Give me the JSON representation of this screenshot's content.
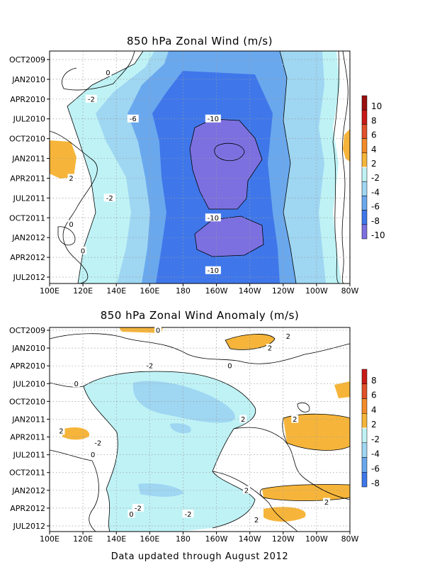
{
  "colors": {
    "neg2": "#bff2f5",
    "neg4": "#9fd6f2",
    "neg6": "#6aa8ee",
    "neg8": "#3f77ea",
    "neg10": "#7c70e0",
    "pos2": "#f6b53a",
    "pos4": "#f38a2a",
    "pos6": "#e0502a",
    "pos8": "#c81a18",
    "pos10": "#9a0f0f",
    "contour": "#000000",
    "grid": "#9a9a9a"
  },
  "chart_data": [
    {
      "type": "heatmap",
      "title": "850 hPa Zonal Wind (m/s)",
      "x_ticks": [
        "100E",
        "120E",
        "140E",
        "160E",
        "180",
        "160W",
        "140W",
        "120W",
        "100W",
        "80W"
      ],
      "x_range_deg_east": [
        100,
        280
      ],
      "y_ticks": [
        "OCT2009",
        "JAN2010",
        "APR2010",
        "JUL2010",
        "OCT2010",
        "JAN2011",
        "APR2011",
        "JUL2011",
        "OCT2011",
        "JAN2012",
        "APR2012",
        "JUL2012"
      ],
      "time_range": [
        "2009-10",
        "2012-08"
      ],
      "grid": true,
      "colorbar": {
        "position": "right",
        "levels": [
          "10",
          "8",
          "6",
          "4",
          "2",
          "-2",
          "-4",
          "-6",
          "-8",
          "-10"
        ]
      },
      "contour_labels": [
        {
          "text": "0",
          "lon": 135,
          "date": "2009-12"
        },
        {
          "text": "-2",
          "lon": 125,
          "date": "2010-04"
        },
        {
          "text": "-6",
          "lon": 150,
          "date": "2010-07"
        },
        {
          "text": "-10",
          "lon": 198,
          "date": "2010-07"
        },
        {
          "text": "2",
          "lon": 113,
          "date": "2011-04"
        },
        {
          "text": "-2",
          "lon": 136,
          "date": "2011-07"
        },
        {
          "text": "-10",
          "lon": 198,
          "date": "2011-10"
        },
        {
          "text": "0",
          "lon": 113,
          "date": "2011-11"
        },
        {
          "text": "0",
          "lon": 120,
          "date": "2012-03"
        },
        {
          "text": "-10",
          "lon": 198,
          "date": "2012-06"
        }
      ]
    },
    {
      "type": "heatmap",
      "title": "850 hPa Zonal Wind Anomaly (m/s)",
      "x_ticks": [
        "100E",
        "120E",
        "140E",
        "160E",
        "180",
        "160W",
        "140W",
        "120W",
        "100W",
        "80W"
      ],
      "x_range_deg_east": [
        100,
        280
      ],
      "y_ticks": [
        "OCT2009",
        "JAN2010",
        "APR2010",
        "JUL2010",
        "OCT2010",
        "JAN2011",
        "APR2011",
        "JUL2011",
        "OCT2011",
        "JAN2012",
        "APR2012",
        "JUL2012"
      ],
      "time_range": [
        "2009-10",
        "2012-08"
      ],
      "grid": true,
      "colorbar": {
        "position": "right",
        "levels": [
          "8",
          "6",
          "4",
          "2",
          "-2",
          "-4",
          "-6",
          "-8"
        ]
      },
      "contour_labels": [
        {
          "text": "0",
          "lon": 165,
          "date": "2009-10"
        },
        {
          "text": "2",
          "lon": 243,
          "date": "2009-11"
        },
        {
          "text": "2",
          "lon": 232,
          "date": "2010-01"
        },
        {
          "text": "-2",
          "lon": 160,
          "date": "2010-04"
        },
        {
          "text": "0",
          "lon": 208,
          "date": "2010-04"
        },
        {
          "text": "0",
          "lon": 116,
          "date": "2010-07"
        },
        {
          "text": "2",
          "lon": 107,
          "date": "2011-03"
        },
        {
          "text": "2",
          "lon": 216,
          "date": "2011-01"
        },
        {
          "text": "2",
          "lon": 247,
          "date": "2011-01"
        },
        {
          "text": "-2",
          "lon": 129,
          "date": "2011-05"
        },
        {
          "text": "0",
          "lon": 126,
          "date": "2011-07"
        },
        {
          "text": "-2",
          "lon": 153,
          "date": "2012-04"
        },
        {
          "text": "0",
          "lon": 149,
          "date": "2012-05"
        },
        {
          "text": "-2",
          "lon": 183,
          "date": "2012-05"
        },
        {
          "text": "2",
          "lon": 218,
          "date": "2012-01"
        },
        {
          "text": "2",
          "lon": 266,
          "date": "2012-03"
        },
        {
          "text": "2",
          "lon": 224,
          "date": "2012-06"
        }
      ]
    }
  ],
  "footer": "Data updated through August 2012"
}
